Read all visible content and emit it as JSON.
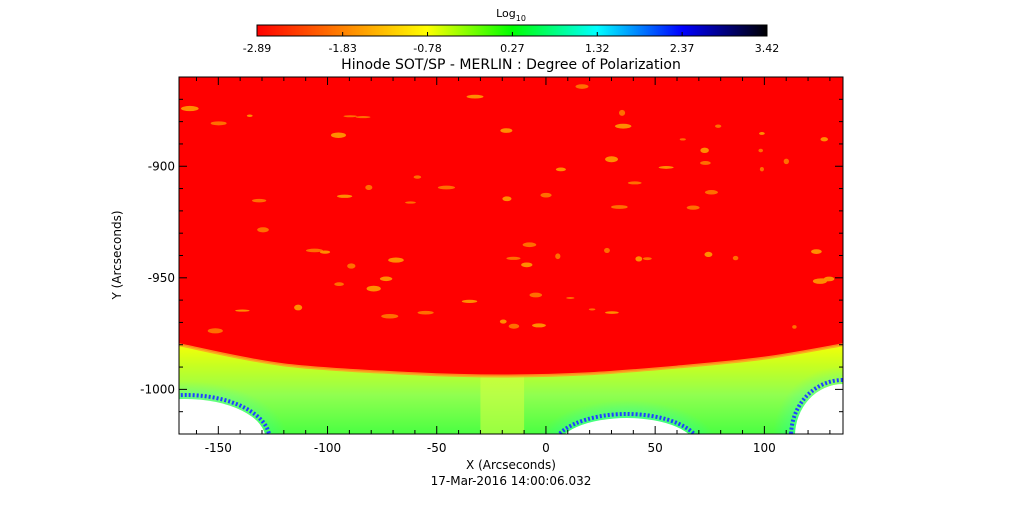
{
  "chart_data": {
    "type": "heatmap",
    "title": "Hinode SOT/SP - MERLIN : Degree of Polarization",
    "xlabel": "X (Arcseconds)",
    "ylabel": "Y (Arcseconds)",
    "xlim": [
      -168,
      136
    ],
    "ylim": [
      -1020,
      -860
    ],
    "x_ticks": [
      -150,
      -100,
      -50,
      0,
      50,
      100
    ],
    "x_tick_labels": [
      "-150",
      "-100",
      "-50",
      "0",
      "50",
      "100"
    ],
    "y_ticks": [
      -900,
      -950,
      -1000
    ],
    "y_tick_labels": [
      "-900",
      "-950",
      "-1000"
    ],
    "colorbar": {
      "label_base": "Log",
      "label_sub": "10",
      "range": [
        -2.89,
        3.42
      ],
      "tick_values": [
        -2.89,
        -1.83,
        -0.78,
        0.27,
        1.32,
        2.37,
        3.42
      ],
      "tick_labels": [
        "-2.89",
        "-1.83",
        "-0.78",
        "0.27",
        "1.32",
        "2.37",
        "3.42"
      ],
      "colors": [
        "#ff0000",
        "#ff8000",
        "#ffff00",
        "#00ff00",
        "#00ffff",
        "#0000ff",
        "#000000"
      ]
    },
    "limb_y_at_x": [
      {
        "x": -168,
        "y": -980
      },
      {
        "x": -120,
        "y": -989
      },
      {
        "x": -60,
        "y": -993
      },
      {
        "x": -20,
        "y": -994
      },
      {
        "x": 20,
        "y": -993
      },
      {
        "x": 60,
        "y": -990
      },
      {
        "x": 100,
        "y": -986
      },
      {
        "x": 136,
        "y": -980
      }
    ],
    "off_disk_value_range": [
      -0.78,
      0.27
    ],
    "on_disk_value": -2.89,
    "footer": "17-Mar-2016 14:00:06.032"
  }
}
